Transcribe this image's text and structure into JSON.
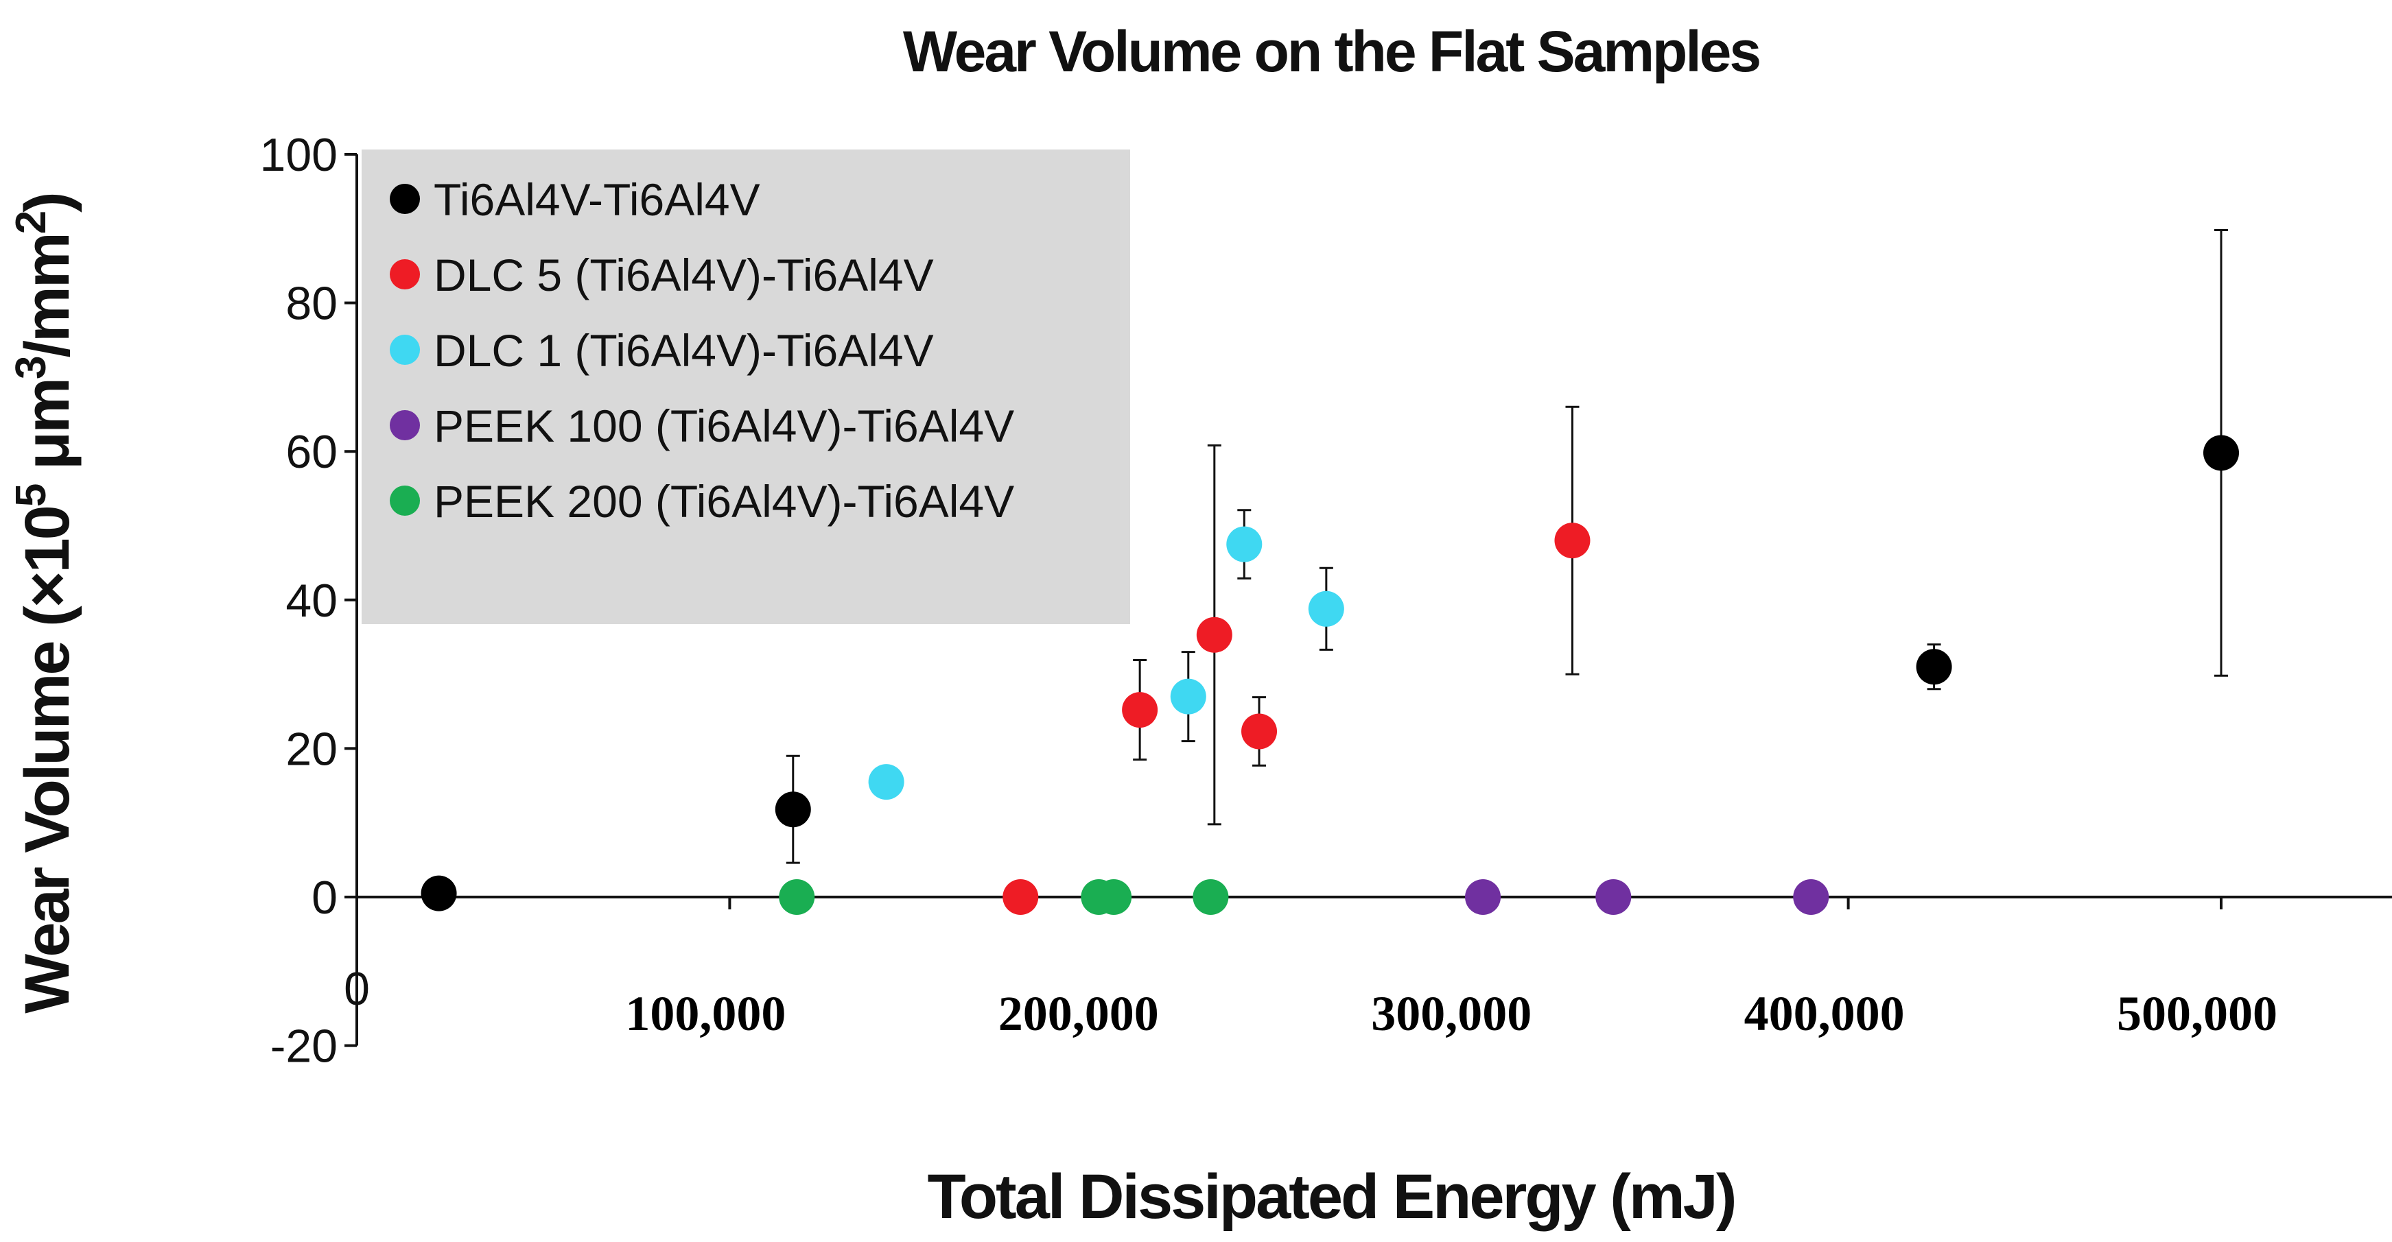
{
  "chart_data": {
    "type": "scatter",
    "title": "Wear Volume on the Flat Samples",
    "xlabel": "Total Dissipated Energy (mJ)",
    "ylabel_parts": [
      "Wear Volume (×10",
      "5",
      " μm",
      "3",
      "/mm",
      "2",
      ")"
    ],
    "xlim": [
      0,
      560000
    ],
    "ylim": [
      -20,
      100
    ],
    "x_origin_label": "0",
    "x_ticks": [
      {
        "value": 100000,
        "label": "100,000"
      },
      {
        "value": 200000,
        "label": "200,000"
      },
      {
        "value": 300000,
        "label": "300,000"
      },
      {
        "value": 400000,
        "label": "400,000"
      },
      {
        "value": 500000,
        "label": "500,000"
      }
    ],
    "y_ticks": [
      {
        "value": -20,
        "label": "-20"
      },
      {
        "value": 0,
        "label": "0"
      },
      {
        "value": 20,
        "label": "20"
      },
      {
        "value": 40,
        "label": "40"
      },
      {
        "value": 60,
        "label": "60"
      },
      {
        "value": 80,
        "label": "80"
      },
      {
        "value": 100,
        "label": "100"
      }
    ],
    "legend_position": "top-left",
    "grid": false,
    "series": [
      {
        "name": "Ti6Al4V-Ti6Al4V",
        "color": "#000000",
        "points": [
          {
            "x": 22000,
            "y": 0.5
          },
          {
            "x": 117000,
            "y": 11.8,
            "err": 7.2
          },
          {
            "x": 423000,
            "y": 31,
            "err": 3
          },
          {
            "x": 500000,
            "y": 59.8,
            "err": 30
          }
        ]
      },
      {
        "name": "DLC 5 (Ti6Al4V)-Ti6Al4V",
        "color": "#ee1c25",
        "points": [
          {
            "x": 178000,
            "y": 0
          },
          {
            "x": 210000,
            "y": 25.2,
            "err": 6.7
          },
          {
            "x": 230000,
            "y": 35.3,
            "err": 25.5
          },
          {
            "x": 242000,
            "y": 22.3,
            "err": 4.6
          },
          {
            "x": 326000,
            "y": 48,
            "err": 18
          }
        ]
      },
      {
        "name": "DLC 1 (Ti6Al4V)-Ti6Al4V",
        "color": "#3fd8f2",
        "points": [
          {
            "x": 142000,
            "y": 15.5
          },
          {
            "x": 223000,
            "y": 27,
            "err": 6
          },
          {
            "x": 238000,
            "y": 47.5,
            "err": 4.6
          },
          {
            "x": 260000,
            "y": 38.8,
            "err": 5.5
          }
        ]
      },
      {
        "name": "PEEK 100 (Ti6Al4V)-Ti6Al4V",
        "color": "#7030a0",
        "points": [
          {
            "x": 302000,
            "y": 0
          },
          {
            "x": 337000,
            "y": 0
          },
          {
            "x": 390000,
            "y": 0
          }
        ]
      },
      {
        "name": "PEEK 200 (Ti6Al4V)-Ti6Al4V",
        "color": "#1aae52",
        "points": [
          {
            "x": 118000,
            "y": 0
          },
          {
            "x": 199000,
            "y": 0
          },
          {
            "x": 203000,
            "y": 0
          },
          {
            "x": 229000,
            "y": 0
          }
        ]
      }
    ]
  }
}
